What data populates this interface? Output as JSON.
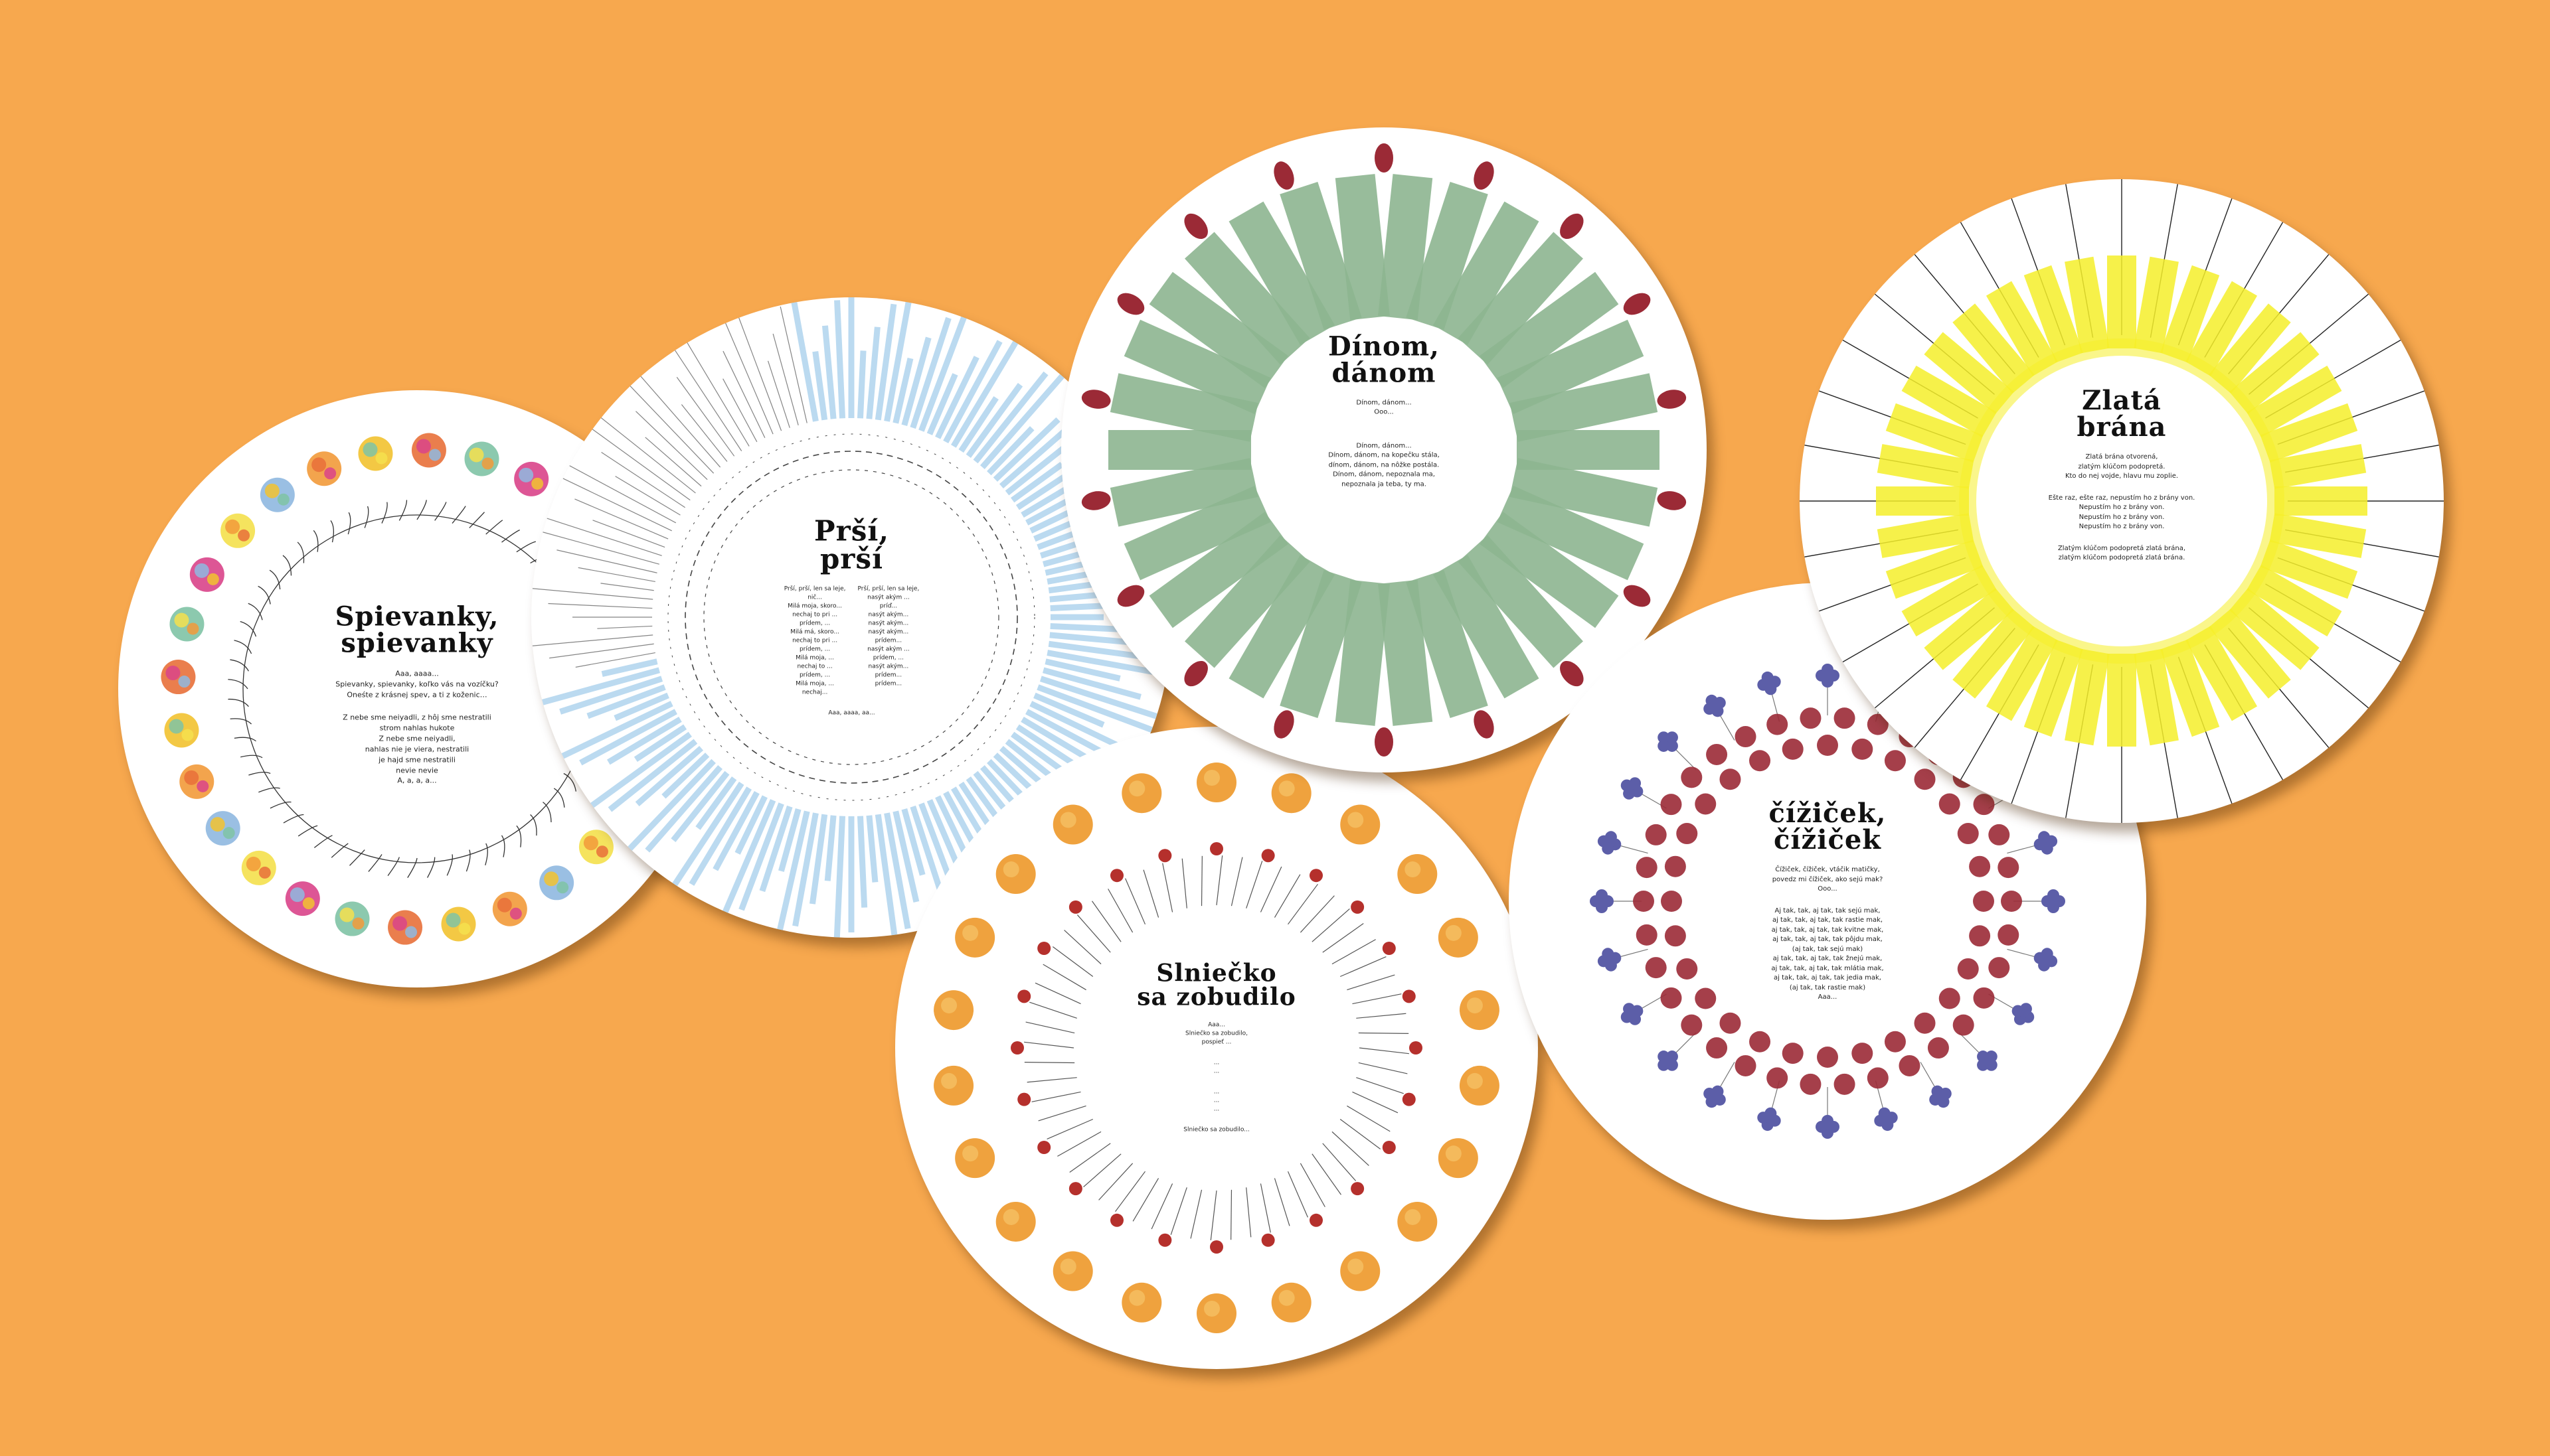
{
  "discs": {
    "spievanky": {
      "title_line1": "Spievanky,",
      "title_line2": "spievanky",
      "intro": "Aaa, aaaa...\nSpievanky, spievanky, koľko vás na vozíčku?\nOneśte z krásnej spev, a ti z koženic…",
      "verse": "Z nebe sme neiyadli, z hôj sme nestratili\nstrom nahlas hukote\nZ nebe sme neiyadli,\nnahlas nie je viera, nestratili\nje hajd sme nestratili\nnevie nevie\nA, a, a, a..."
    },
    "prsi": {
      "title_line1": "Prší,",
      "title_line2": "prší",
      "col1": "Prší, prší, len sa leje,\nnič...\nMilá moja, skoro...\nnechaj to pri ...\nprídem, ...\nMilá má, skoro...\nnechaj to pri ...\nprídem, ...\nMilá moja, ...\nnechaj to ...\nprídem, ...\nMilá moja, ...\nnechaj...",
      "col2": "Prší, prší, len sa leje,\nnasýt akým ...\npríď...\nnasýt akým...\nnasýt akým...\nnasýt akým...\nprídem...\nnasýt akým ...\nprídem, ...\nnasýt akým...\nprídem...\nprídem...",
      "outro": "Aaa, aaaa, aa..."
    },
    "dinom": {
      "title_line1": "Dínom,",
      "title_line2": "dánom",
      "intro": "Dínom, dánom...\nOoo...",
      "verse": "Dínom, dánom...\nDínom, dánom, na kopečku stála,\ndínom, dánom, na nôžke postála.\nDínom, dánom, nepoznala ma,\nnepoznala ja teba, ty ma."
    },
    "zlata": {
      "title_line1": "Zlatá",
      "title_line2": "brána",
      "intro": "Zlatá brána otvorená,\nzlatým klúčom podopretá.\nKto do nej vojde, hlavu mu zoplie.",
      "verse": "Ešte raz, ešte raz, nepustím ho z brány von.\nNepustím ho z brány von.\nNepustím ho z brány von.\nNepustím ho z brány von.",
      "outro": "Zlatým klúčom podopretá zlatá brána,\nzlatým klúčom podopretá zlatá brána."
    },
    "slnicko": {
      "title_line1": "Slniečko",
      "title_line2": "sa zobudilo",
      "intro": "Aaa...\nSlniečko sa zobudilo,\npospieť ...",
      "verse1": "...\n...",
      "verse2": "...\n...\n...",
      "outro": "Slniečko sa zobudilo..."
    },
    "cizicek": {
      "title_line1": "čížiček,",
      "title_line2": "čížiček",
      "intro": "Čížiček, čížiček, vtáčik matičky,\npovedz mi čížiček, ako sejú mak?\nOoo...",
      "verse": "Aj tak, tak, aj tak, tak sejú mak,\naj tak, tak, aj tak, tak rastie mak,\naj tak, tak, aj tak, tak kvitne mak,\naj tak, tak, aj tak, tak pôjdu mak,\n(aj tak, tak sejú mak)\naj tak, tak, aj tak, tak žnejú mak,\naj tak, tak, aj tak, tak mlátia mak,\naj tak, tak, aj tak, tak jedia mak,\n(aj tak, tak rastie mak)\nAaa..."
    }
  },
  "colors": {
    "background": "#F7A84E",
    "green": "#8DB590",
    "blue": "#9FCBEA",
    "yellow": "#F5EE2A",
    "red": "#9B2A36",
    "purple": "#5C5EA8",
    "orange": "#EFA23E"
  }
}
